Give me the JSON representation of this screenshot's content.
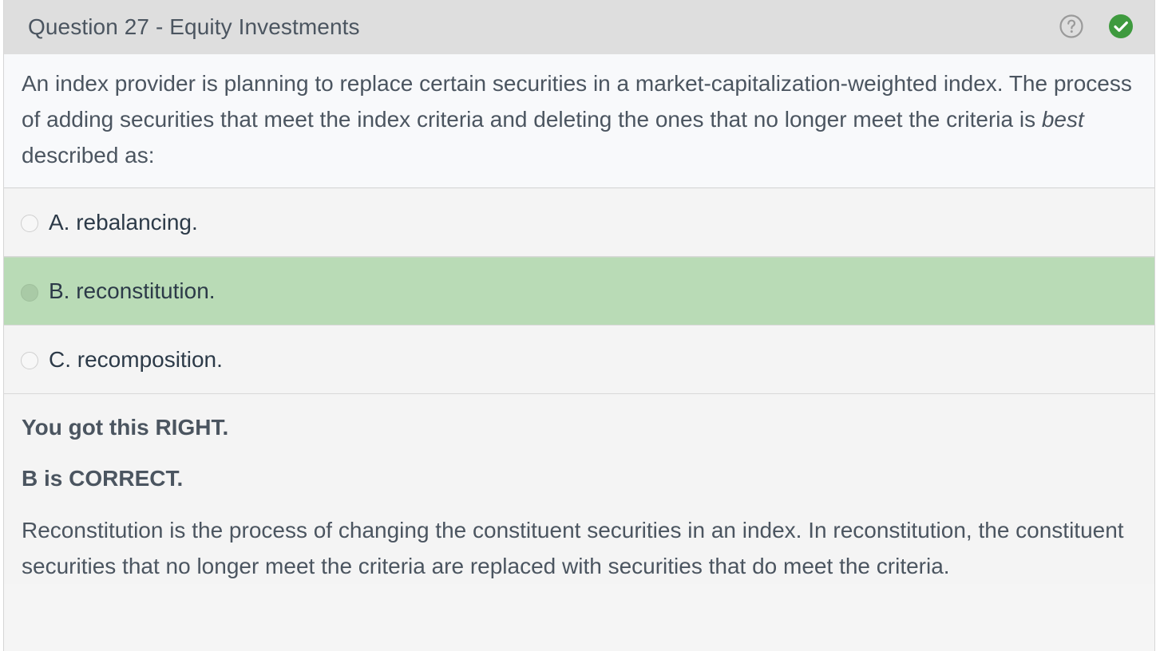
{
  "header": {
    "title": "Question 27 - Equity Investments",
    "help_icon": "question-circle-icon",
    "status_icon": "check-circle-icon",
    "status_color": "#3e9a3e"
  },
  "question": {
    "text_before": "An index provider is planning to replace certain securities in a market-capitalization-weighted index.  The process of adding securities that meet the index criteria and deleting the ones that no longer meet the criteria is ",
    "emphasis": "best",
    "text_after": " described as:"
  },
  "options": [
    {
      "label": "A. rebalancing.",
      "selected": false
    },
    {
      "label": "B. reconstitution.",
      "selected": true
    },
    {
      "label": "C. recomposition.",
      "selected": false
    }
  ],
  "colors": {
    "selected_bg": "#b9dbb6",
    "header_bg": "#dedede"
  },
  "feedback": {
    "status": "You got this RIGHT.",
    "correct_answer": "B is CORRECT.",
    "explanation": "Reconstitution is the process of changing the constituent securities in an index.  In reconstitution, the constituent securities that no longer meet the criteria are replaced with securities that do meet the criteria."
  }
}
